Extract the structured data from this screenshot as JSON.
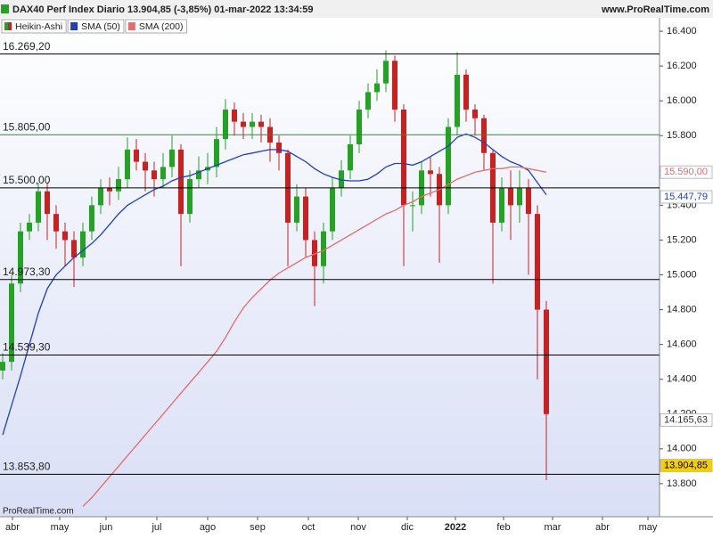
{
  "chart_data": {
    "type": "candlestick",
    "title": "DAX40 Perf Index Diario 13.904,85 (-3,85%) 01-mar-2022 13:34:59",
    "source": "www.ProRealTime.com",
    "watermark": "ProRealTime.com",
    "x": [
      0,
      1,
      2,
      3,
      4,
      5,
      6,
      7,
      8,
      9,
      10,
      11,
      12,
      13,
      14,
      15,
      16,
      17,
      18,
      19,
      20,
      21,
      22,
      23,
      24,
      25,
      26,
      27,
      28,
      29,
      30,
      31,
      32,
      33,
      34,
      35,
      36,
      37,
      38,
      39,
      40,
      41,
      42,
      43,
      44,
      45,
      46,
      47,
      48,
      49,
      50,
      51,
      52,
      53,
      54,
      55,
      56,
      57,
      58,
      59,
      60,
      61
    ],
    "xlim": [
      -0.3,
      73.7
    ],
    "xticks": [
      {
        "value": 1.1,
        "label": "abr"
      },
      {
        "value": 6.4,
        "label": "may"
      },
      {
        "value": 11.6,
        "label": "jun"
      },
      {
        "value": 17.3,
        "label": "jul"
      },
      {
        "value": 23,
        "label": "ago"
      },
      {
        "value": 28.6,
        "label": "sep"
      },
      {
        "value": 34.3,
        "label": "oct"
      },
      {
        "value": 39.9,
        "label": "nov"
      },
      {
        "value": 45.4,
        "label": "dic"
      },
      {
        "value": 50.8,
        "label": "2022"
      },
      {
        "value": 56.2,
        "label": "feb"
      },
      {
        "value": 61.7,
        "label": "mar"
      },
      {
        "value": 67.3,
        "label": "abr"
      },
      {
        "value": 72.4,
        "label": "may"
      }
    ],
    "ylim": [
      13610,
      16477
    ],
    "yticks": [
      {
        "value": 16400,
        "label": "16.400"
      },
      {
        "value": 16200,
        "label": "16.200"
      },
      {
        "value": 16000,
        "label": "16.000"
      },
      {
        "value": 15800,
        "label": "15.800"
      },
      {
        "value": 15600,
        "label": "15.600"
      },
      {
        "value": 15400,
        "label": "15.400"
      },
      {
        "value": 15200,
        "label": "15.200"
      },
      {
        "value": 15000,
        "label": "15.000"
      },
      {
        "value": 14800,
        "label": "14.800"
      },
      {
        "value": 14600,
        "label": "14.600"
      },
      {
        "value": 14400,
        "label": "14.400"
      },
      {
        "value": 14200,
        "label": "14.200"
      },
      {
        "value": 14000,
        "label": "14.000"
      },
      {
        "value": 13800,
        "label": "13.800"
      }
    ],
    "series": [
      {
        "name": "Heikin-Ashi",
        "up_color": "#22a322",
        "down_color": "#c92020",
        "open": [
          14450,
          14500,
          14950,
          15250,
          15300,
          15480,
          15350,
          15250,
          15200,
          15100,
          15250,
          15400,
          15500,
          15480,
          15550,
          15720,
          15650,
          15600,
          15550,
          15620,
          15720,
          15350,
          15550,
          15600,
          15620,
          15780,
          15950,
          15880,
          15850,
          15880,
          15850,
          15760,
          15700,
          15300,
          15450,
          15200,
          15050,
          15250,
          15500,
          15600,
          15750,
          15950,
          16050,
          16100,
          16230,
          15950,
          15400,
          15400,
          15600,
          15580,
          15400,
          15850,
          16150,
          15950,
          15900,
          15700,
          15300,
          15500,
          15400,
          15500,
          15350,
          14800
        ],
        "high": [
          14550,
          15000,
          15300,
          15350,
          15530,
          15530,
          15400,
          15300,
          15250,
          15300,
          15450,
          15550,
          15560,
          15620,
          15790,
          15780,
          15700,
          15650,
          15700,
          15800,
          15750,
          15600,
          15680,
          15700,
          15850,
          16010,
          15990,
          15930,
          15930,
          15920,
          15900,
          15800,
          15720,
          15520,
          15500,
          15250,
          15300,
          15560,
          15660,
          15800,
          16000,
          16100,
          16180,
          16290,
          16260,
          15980,
          15480,
          15650,
          15680,
          15620,
          15900,
          16280,
          16180,
          15980,
          15920,
          15720,
          15560,
          15600,
          15600,
          15550,
          15400,
          14850
        ],
        "low": [
          14400,
          14450,
          14900,
          15200,
          15250,
          15200,
          15150,
          15050,
          14930,
          15050,
          15200,
          15350,
          15400,
          15430,
          15500,
          15600,
          15480,
          15450,
          15500,
          15560,
          15050,
          15300,
          15500,
          15520,
          15560,
          15720,
          15800,
          15780,
          15780,
          15760,
          15650,
          15600,
          15050,
          15250,
          15100,
          14820,
          14950,
          15200,
          15450,
          15550,
          15700,
          15900,
          16000,
          16050,
          15880,
          15050,
          15250,
          15350,
          15450,
          15070,
          15350,
          15800,
          15880,
          15800,
          15600,
          14950,
          15250,
          15200,
          15300,
          15000,
          14400,
          13820
        ],
        "close": [
          14500,
          14950,
          15250,
          15300,
          15480,
          15350,
          15250,
          15200,
          15100,
          15250,
          15400,
          15500,
          15480,
          15550,
          15720,
          15650,
          15600,
          15550,
          15620,
          15720,
          15350,
          15550,
          15600,
          15620,
          15780,
          15950,
          15880,
          15850,
          15880,
          15850,
          15760,
          15700,
          15300,
          15450,
          15200,
          15050,
          15250,
          15500,
          15600,
          15750,
          15950,
          16050,
          16100,
          16230,
          15950,
          15400,
          15400,
          15600,
          15580,
          15400,
          15850,
          16150,
          15950,
          15900,
          15700,
          15300,
          15500,
          15400,
          15500,
          15350,
          14800,
          14200
        ]
      },
      {
        "name": "SMA (50)",
        "color": "#1f3fbf",
        "values": [
          14080,
          14250,
          14420,
          14600,
          14780,
          14920,
          15000,
          15050,
          15100,
          15140,
          15180,
          15230,
          15290,
          15350,
          15400,
          15430,
          15460,
          15490,
          15510,
          15540,
          15560,
          15570,
          15590,
          15610,
          15630,
          15650,
          15670,
          15690,
          15700,
          15710,
          15720,
          15720,
          15710,
          15680,
          15650,
          15610,
          15580,
          15560,
          15545,
          15540,
          15540,
          15550,
          15580,
          15620,
          15640,
          15640,
          15630,
          15650,
          15680,
          15710,
          15740,
          15790,
          15810,
          15790,
          15760,
          15720,
          15680,
          15650,
          15630,
          15600,
          15530,
          15460
        ]
      },
      {
        "name": "SMA (200)",
        "color": "#e86a6a",
        "values": [
          null,
          null,
          null,
          null,
          null,
          null,
          null,
          null,
          null,
          13670,
          13720,
          13780,
          13840,
          13900,
          13960,
          14020,
          14080,
          14140,
          14200,
          14260,
          14320,
          14380,
          14440,
          14500,
          14560,
          14640,
          14730,
          14810,
          14870,
          14920,
          14970,
          15010,
          15040,
          15070,
          15100,
          15120,
          15140,
          15170,
          15200,
          15230,
          15260,
          15290,
          15320,
          15350,
          15370,
          15400,
          15420,
          15450,
          15470,
          15490,
          15520,
          15550,
          15570,
          15590,
          15600,
          15610,
          15610,
          15620,
          15620,
          15610,
          15600,
          15590
        ]
      }
    ],
    "levels": [
      {
        "value": 16269.2,
        "label": "16.269,20",
        "color": "#000000"
      },
      {
        "value": 15805,
        "label": "15.805,00",
        "color": "#1a9a1a"
      },
      {
        "value": 15500,
        "label": "15.500,00",
        "color": "#000000"
      },
      {
        "value": 14973.3,
        "label": "14.973,30",
        "color": "#000000"
      },
      {
        "value": 14539.3,
        "label": "14.539,30",
        "color": "#000000"
      },
      {
        "value": 13853.8,
        "label": "13.853,80",
        "color": "#000000"
      }
    ],
    "price_tags": [
      {
        "value": 15590,
        "label": "15.590,00",
        "color": "#e86a6a",
        "fill": "#ffffff"
      },
      {
        "value": 15447.79,
        "label": "15.447,79",
        "color": "#1f3fbf",
        "fill": "#ffffff"
      },
      {
        "value": 14165.63,
        "label": "14.165,63",
        "color": "#333333",
        "fill": "#ffffff"
      },
      {
        "value": 13904.85,
        "label": "13.904,85",
        "color": "#000000",
        "fill": "#f5d000"
      }
    ]
  }
}
